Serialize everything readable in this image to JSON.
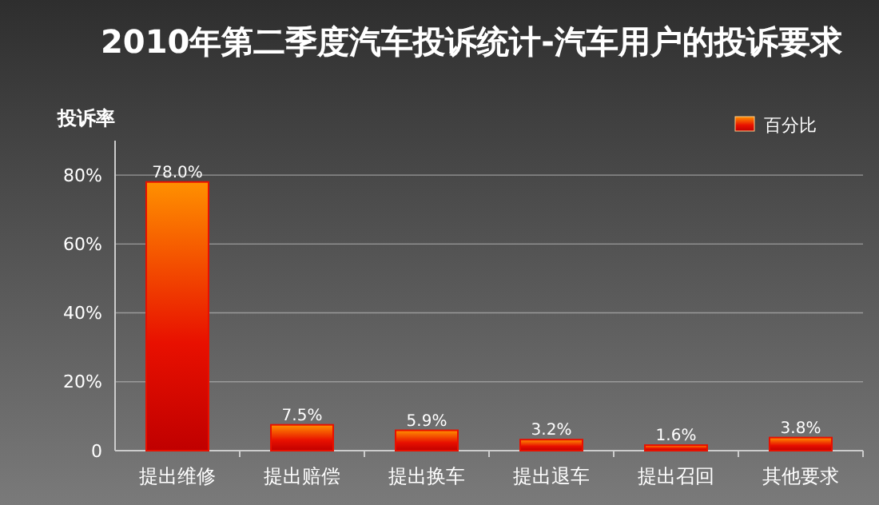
{
  "chart_data": {
    "type": "bar",
    "title": "2010年第二季度汽车投诉统计-汽车用户的投诉要求",
    "ylabel": "投诉率",
    "categories": [
      "提出维修",
      "提出赔偿",
      "提出换车",
      "提出退车",
      "提出召回",
      "其他要求"
    ],
    "series": [
      {
        "name": "百分比",
        "color": "#e81000",
        "values": [
          78.0,
          7.5,
          5.9,
          3.2,
          1.6,
          3.8
        ],
        "value_labels": [
          "78.0%",
          "7.5%",
          "5.9%",
          "3.2%",
          "1.6%",
          "3.8%"
        ]
      }
    ],
    "ylim": [
      0,
      90
    ],
    "yticks": [
      {
        "value": 0,
        "label": "0"
      },
      {
        "value": 20,
        "label": "20%"
      },
      {
        "value": 40,
        "label": "40%"
      },
      {
        "value": 60,
        "label": "60%"
      },
      {
        "value": 80,
        "label": "80%"
      }
    ],
    "grid": "y",
    "legend": "top right"
  }
}
